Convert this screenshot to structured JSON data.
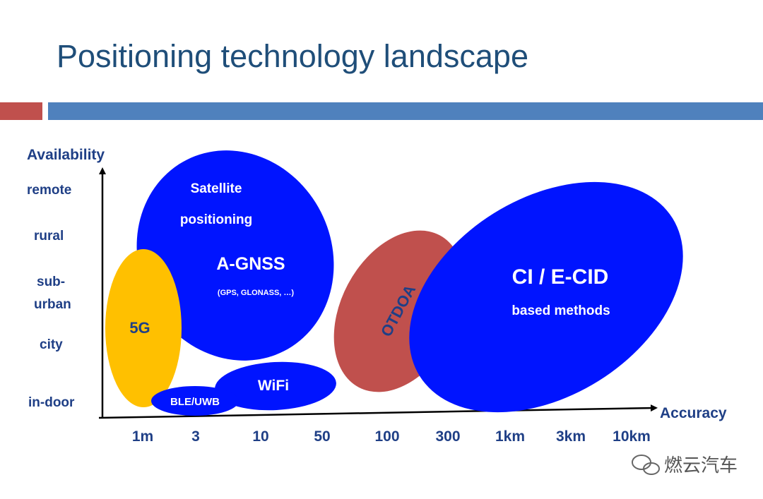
{
  "title": "Positioning technology landscape",
  "colors": {
    "title": "#1f4e79",
    "bar_red": "#c0504d",
    "bar_blue": "#4f81bd",
    "blue_ellipse": "#0014ff",
    "yellow_ellipse": "#ffc000",
    "red_ellipse": "#c0504d",
    "axis_text": "#1f3f86"
  },
  "axes": {
    "y_title": "Availability",
    "x_title": "Accuracy",
    "y_ticks": [
      "remote",
      "rural",
      "sub-",
      "urban",
      "city",
      "in-door"
    ],
    "x_ticks": [
      "1m",
      "3",
      "10",
      "50",
      "100",
      "300",
      "1km",
      "3km",
      "10km"
    ]
  },
  "regions": {
    "satellite": {
      "line1": "Satellite",
      "line2": "positioning",
      "name": "A-GNSS",
      "detail": "(GPS, GLONASS, …)"
    },
    "fiveg": {
      "label": "5G"
    },
    "wifi": {
      "label": "WiFi"
    },
    "ble": {
      "label": "BLE/UWB"
    },
    "otdoa": {
      "label": "OTDOA"
    },
    "cid": {
      "name": "CI / E-CID",
      "detail": "based methods"
    }
  },
  "watermark": {
    "text": "燃云汽车",
    "icon": "wechat-icon"
  }
}
